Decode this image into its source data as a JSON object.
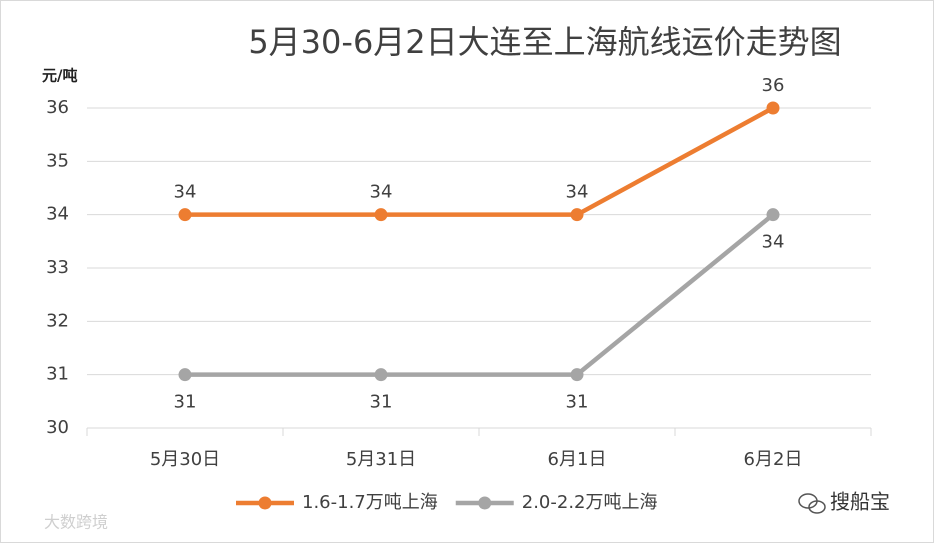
{
  "chart_data": {
    "type": "line",
    "title": "5月30-6月2日大连至上海航线运价走势图",
    "y_label": "元/吨",
    "categories": [
      "5月30日",
      "5月31日",
      "6月1日",
      "6月2日"
    ],
    "series": [
      {
        "name": "1.6-1.7万吨上海",
        "color": "#ed7d31",
        "values": [
          34,
          34,
          34,
          36
        ]
      },
      {
        "name": "2.0-2.2万吨上海",
        "color": "#a5a5a5",
        "values": [
          31,
          31,
          31,
          34
        ]
      }
    ],
    "ylim": [
      30,
      36
    ],
    "yticks": [
      30,
      31,
      32,
      33,
      34,
      35,
      36
    ],
    "grid": true,
    "legend": "bottom",
    "annotations": [
      "搜船宝",
      "大数跨境"
    ]
  }
}
